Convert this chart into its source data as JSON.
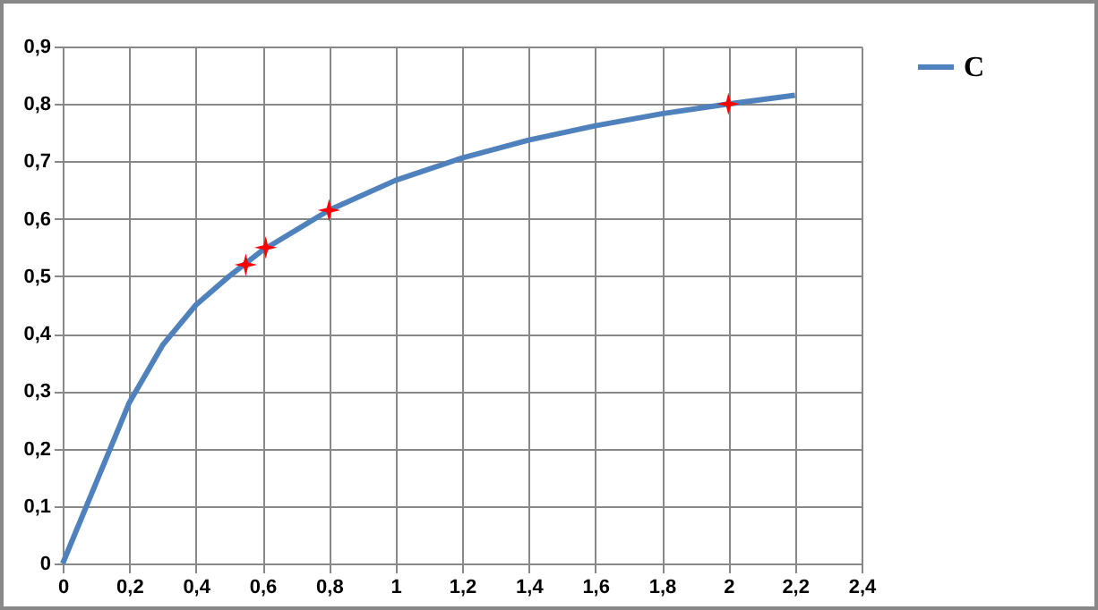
{
  "chart_data": {
    "type": "line",
    "xlim": [
      0,
      2.4
    ],
    "ylim": [
      0,
      0.9
    ],
    "xticks": [
      0,
      {
        "value": 0.2,
        "label": "0,2"
      },
      {
        "value": 0.4,
        "label": "0,4"
      },
      {
        "value": 0.6,
        "label": "0,6"
      },
      {
        "value": 0.8,
        "label": "0,8"
      },
      1,
      {
        "value": 1.2,
        "label": "1,2"
      },
      {
        "value": 1.4,
        "label": "1,4"
      },
      {
        "value": 1.6,
        "label": "1,6"
      },
      {
        "value": 1.8,
        "label": "1,8"
      },
      2,
      {
        "value": 2.2,
        "label": "2,2"
      },
      {
        "value": 2.4,
        "label": "2,4"
      }
    ],
    "yticks": [
      0,
      {
        "value": 0.1,
        "label": "0,1"
      },
      {
        "value": 0.2,
        "label": "0,2"
      },
      {
        "value": 0.3,
        "label": "0,3"
      },
      {
        "value": 0.4,
        "label": "0,4"
      },
      {
        "value": 0.5,
        "label": "0,5"
      },
      {
        "value": 0.6,
        "label": "0,6"
      },
      {
        "value": 0.7,
        "label": "0,7"
      },
      {
        "value": 0.8,
        "label": "0,8"
      },
      {
        "value": 0.9,
        "label": "0,9"
      }
    ],
    "grid": true,
    "legend": "right",
    "series": [
      {
        "name": "C",
        "type": "line",
        "color": "#4f81bd",
        "marker": "none",
        "x": [
          0,
          0.1,
          0.2,
          0.3,
          0.4,
          0.5,
          0.6,
          0.8,
          1.0,
          1.2,
          1.4,
          1.6,
          1.8,
          2.0,
          2.2
        ],
        "values": [
          0,
          0.14,
          0.28,
          0.38,
          0.45,
          0.5,
          0.545,
          0.615,
          0.667,
          0.706,
          0.737,
          0.762,
          0.783,
          0.8,
          0.815
        ]
      },
      {
        "type": "scatter",
        "color": "#ff0000",
        "marker": "star",
        "x": [
          0.55,
          0.61,
          0.8,
          2.0
        ],
        "values": [
          0.52,
          0.55,
          0.615,
          0.8
        ]
      }
    ]
  }
}
